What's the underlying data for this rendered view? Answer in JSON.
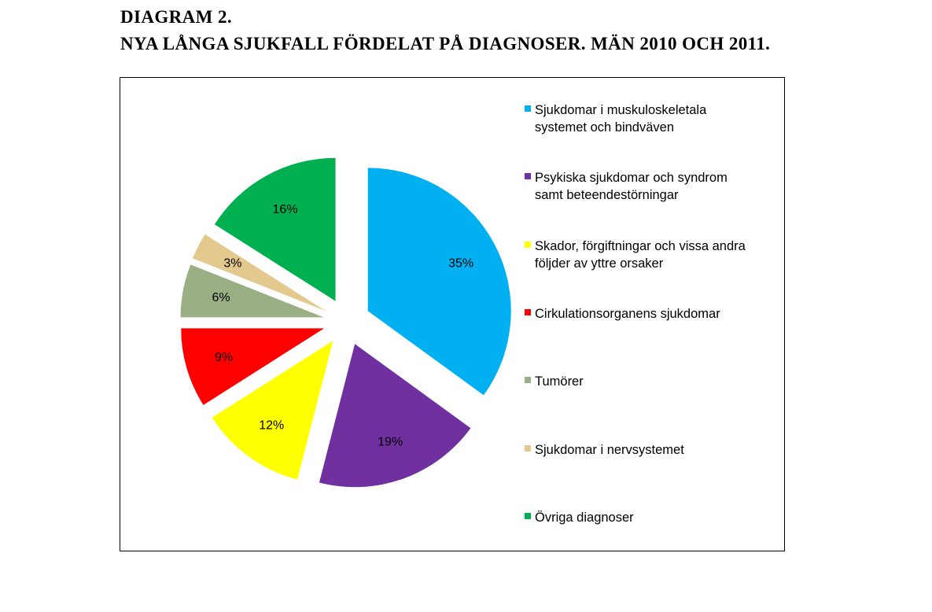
{
  "header": {
    "line1": "DIAGRAM 2.",
    "line2": "NYA LÅNGA SJUKFALL FÖRDELAT PÅ DIAGNOSER. MÄN 2010 OCH 2011."
  },
  "chart_data": {
    "type": "pie",
    "exploded": true,
    "legend_position": "right",
    "slices": [
      {
        "label": "Sjukdomar i muskuloskeletala\nsystemet och bindväven",
        "value": 35,
        "data_label": "35%",
        "color": "#00B0F0"
      },
      {
        "label": "Psykiska sjukdomar och syndrom\nsamt beteendestörningar",
        "value": 19,
        "data_label": "19%",
        "color": "#7030A0"
      },
      {
        "label": "Skador, förgiftningar och vissa andra\nföljder av yttre orsaker",
        "value": 12,
        "data_label": "12%",
        "color": "#FFFF00"
      },
      {
        "label": "Cirkulationsorganens sjukdomar",
        "value": 9,
        "data_label": "9%",
        "color": "#FF0000"
      },
      {
        "label": "Tumörer",
        "value": 6,
        "data_label": "6%",
        "color": "#9BAF85"
      },
      {
        "label": "Sjukdomar i nervsystemet",
        "value": 3,
        "data_label": "3%",
        "color": "#E3C98E"
      },
      {
        "label": "Övriga diagnoser",
        "value": 16,
        "data_label": "16%",
        "color": "#00B050"
      }
    ]
  }
}
